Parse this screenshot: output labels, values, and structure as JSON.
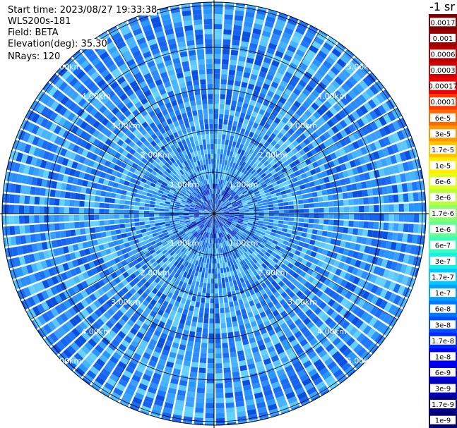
{
  "info": {
    "start_time": "Start time: 2023/08/27 19:33:38",
    "station": "WLS200s-181",
    "field": "Field: BETA",
    "elevation": "Elevation(deg): 35.30",
    "nrays": "NRays: 120"
  },
  "colorbar": {
    "unit_title": "-1 sr",
    "labels": [
      "0.0017",
      "0.001",
      "0.0006",
      "0.0003",
      "0.00017",
      "0.0001",
      "6e-5",
      "3e-5",
      "1.7e-5",
      "1e-5",
      "6e-6",
      "3e-6",
      "1.7e-6",
      "1e-6",
      "6e-7",
      "3e-7",
      "1.7e-7",
      "1e-7",
      "6e-8",
      "3e-8",
      "1.7e-8",
      "1e-8",
      "6e-9",
      "3e-9",
      "1.7e-9",
      "1e-9"
    ],
    "colors": [
      "#800000",
      "#9a0000",
      "#b40000",
      "#d20000",
      "#ee0000",
      "#ff3a00",
      "#ff6a00",
      "#ff9800",
      "#ffc400",
      "#ffee00",
      "#e2ff14",
      "#baff3c",
      "#8cff6b",
      "#62ff94",
      "#3affbc",
      "#14f0e6",
      "#00c8ff",
      "#00a0ff",
      "#0078ff",
      "#0050ff",
      "#0028ff",
      "#0000ff",
      "#0000dd",
      "#0000b4",
      "#00008e",
      "#000070"
    ]
  },
  "chart_data": {
    "type": "heatmap",
    "projection": "polar PPI",
    "field": "BETA",
    "elevation_deg": 35.3,
    "nrays": 120,
    "range_rings_km": [
      1,
      2,
      3,
      4,
      5
    ],
    "ring_labels": [
      "1.00km",
      "2.00km",
      "3.00km",
      "4.00km",
      "5.00km"
    ],
    "dominant_values": "mostly 1e-8 to 1e-7 (blue to cyan) across the scan",
    "colorscale": "log"
  }
}
